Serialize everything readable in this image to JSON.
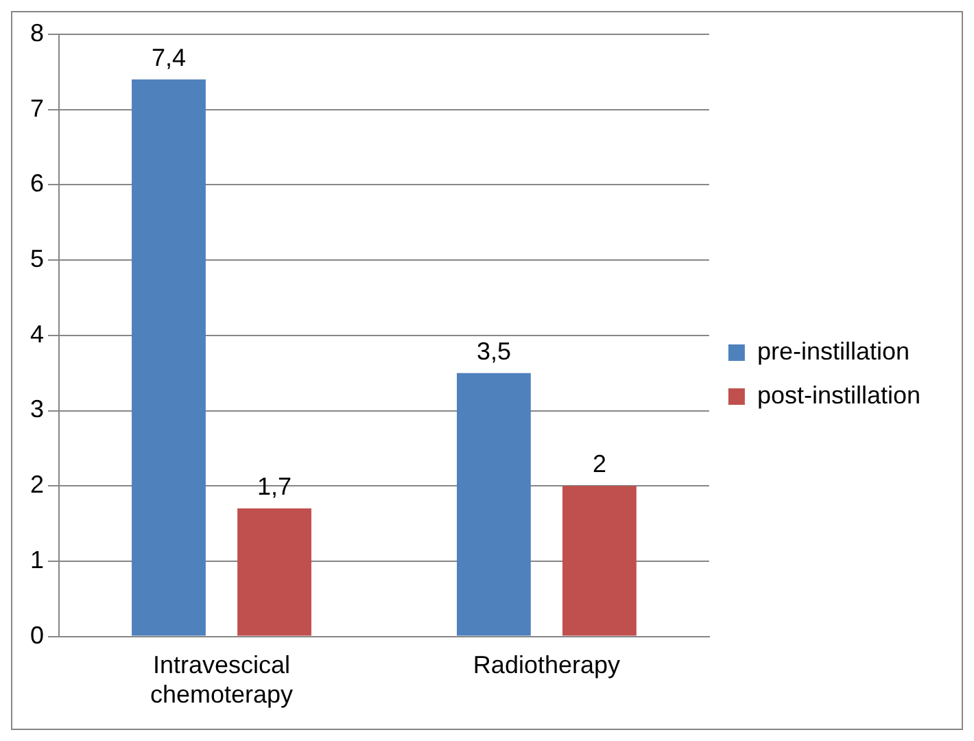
{
  "chart_data": {
    "type": "bar",
    "categories": [
      "Intravescical chemoterapy",
      "Radiotherapy"
    ],
    "series": [
      {
        "name": "pre-instillation",
        "color": "#4f81bd",
        "values": [
          7.4,
          3.5
        ],
        "value_labels": [
          "7,4",
          "3,5"
        ]
      },
      {
        "name": "post-instillation",
        "color": "#c0504d",
        "values": [
          1.7,
          2
        ],
        "value_labels": [
          "1,7",
          "2"
        ]
      }
    ],
    "ylim": [
      0,
      8
    ],
    "yticks": [
      0,
      1,
      2,
      3,
      4,
      5,
      6,
      7,
      8
    ],
    "grid": "y",
    "legend": "right"
  }
}
